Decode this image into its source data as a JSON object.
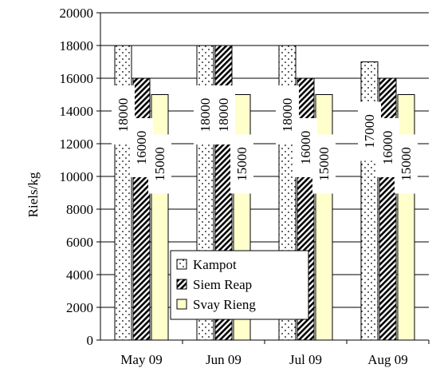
{
  "chart_data": {
    "type": "bar",
    "categories": [
      "May 09",
      "Jun 09",
      "Jul 09",
      "Aug 09"
    ],
    "series": [
      {
        "name": "Kampot",
        "values": [
          18000,
          18000,
          18000,
          17000
        ],
        "pattern": "dots",
        "color": "#ffffff"
      },
      {
        "name": "Siem Reap",
        "values": [
          16000,
          18000,
          16000,
          16000
        ],
        "pattern": "hatch",
        "color": "#555555"
      },
      {
        "name": "Svay Rieng",
        "values": [
          15000,
          15000,
          15000,
          15000
        ],
        "pattern": "solid",
        "color": "#ffffcc"
      }
    ],
    "data_labels": [
      [
        "18000",
        "18000",
        "18000",
        "17000"
      ],
      [
        "16000",
        "18000",
        "16000",
        "16000"
      ],
      [
        "15000",
        "15000",
        "15000",
        "15000"
      ]
    ],
    "title": "",
    "xlabel": "",
    "ylabel": "Riels/kg",
    "ylim": [
      0,
      20000
    ],
    "yticks": [
      "0",
      "2000",
      "4000",
      "6000",
      "8000",
      "10000",
      "12000",
      "14000",
      "16000",
      "18000",
      "20000"
    ],
    "grid": true,
    "legend_position": "center-bottom, inside plot"
  }
}
